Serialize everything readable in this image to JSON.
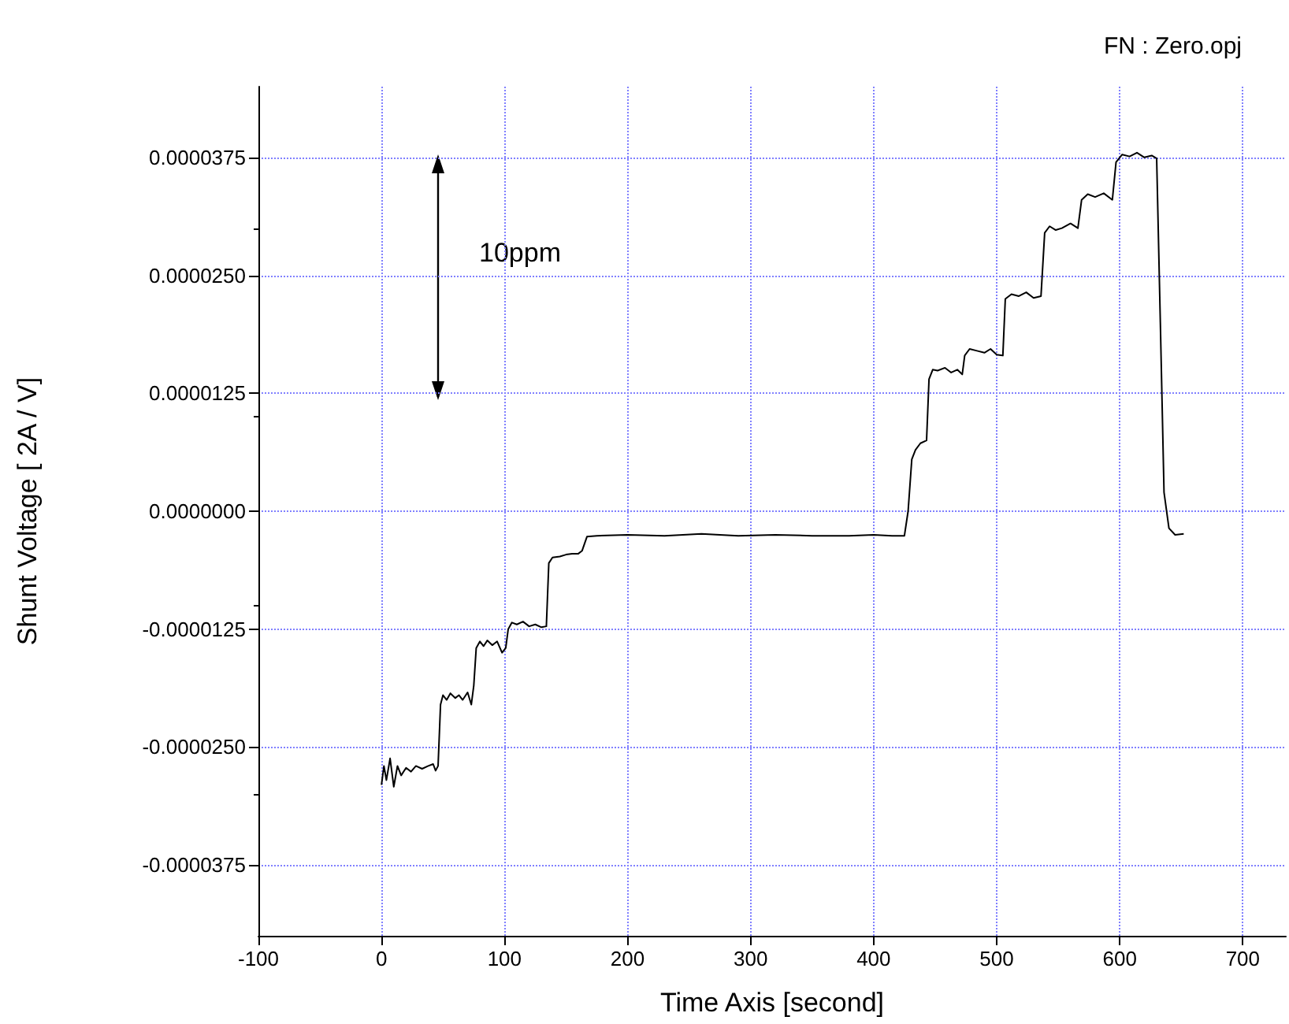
{
  "chart_data": {
    "type": "line",
    "xlabel": "Time Axis [second]",
    "ylabel": "Shunt Voltage [ 2A / V]",
    "annotations": [
      "FN : Zero.opj",
      "10ppm"
    ],
    "xlim": [
      -100,
      735
    ],
    "xticks": [
      -100,
      0,
      100,
      200,
      300,
      400,
      500,
      600,
      700
    ],
    "ylim": [
      -4.5e-05,
      4.5e-05
    ],
    "yticks": [
      {
        "value": -3.75e-05,
        "label": "-0.0000375"
      },
      {
        "value": -2.5e-05,
        "label": "-0.0000250"
      },
      {
        "value": -1.25e-05,
        "label": "-0.0000125"
      },
      {
        "value": 0,
        "label": "0.0000000"
      },
      {
        "value": 1.25e-05,
        "label": "0.0000125"
      },
      {
        "value": 2.5e-05,
        "label": "0.0000250"
      },
      {
        "value": 3.75e-05,
        "label": "0.0000375"
      }
    ],
    "grid": true,
    "marker": "none",
    "line_style": "solid",
    "series": [
      {
        "color": "#000000",
        "x": [
          0,
          2,
          4,
          7,
          10,
          13,
          16,
          20,
          24,
          28,
          33,
          38,
          42,
          44,
          46,
          48,
          50,
          53,
          56,
          60,
          63,
          66,
          70,
          73,
          75,
          77,
          80,
          83,
          86,
          90,
          94,
          98,
          101,
          103,
          106,
          110,
          115,
          120,
          125,
          130,
          134,
          136,
          139,
          145,
          150,
          155,
          160,
          163,
          167,
          175,
          200,
          230,
          260,
          290,
          320,
          350,
          380,
          400,
          415,
          425,
          428,
          431,
          434,
          438,
          443,
          445,
          448,
          452,
          458,
          463,
          468,
          472,
          474,
          478,
          484,
          490,
          495,
          500,
          505,
          507,
          512,
          518,
          524,
          530,
          536,
          539,
          543,
          548,
          553,
          560,
          566,
          569,
          574,
          580,
          587,
          594,
          597,
          602,
          608,
          614,
          620,
          626,
          630,
          633,
          636,
          640,
          645,
          652
        ],
        "values": [
          -2.9e-05,
          -2.7e-05,
          -2.85e-05,
          -2.62e-05,
          -2.92e-05,
          -2.7e-05,
          -2.8e-05,
          -2.72e-05,
          -2.76e-05,
          -2.7e-05,
          -2.73e-05,
          -2.7e-05,
          -2.68e-05,
          -2.75e-05,
          -2.7e-05,
          -2.05e-05,
          -1.95e-05,
          -2e-05,
          -1.93e-05,
          -1.98e-05,
          -1.95e-05,
          -2e-05,
          -1.92e-05,
          -2.05e-05,
          -1.85e-05,
          -1.45e-05,
          -1.38e-05,
          -1.43e-05,
          -1.37e-05,
          -1.42e-05,
          -1.38e-05,
          -1.5e-05,
          -1.45e-05,
          -1.25e-05,
          -1.18e-05,
          -1.2e-05,
          -1.17e-05,
          -1.22e-05,
          -1.2e-05,
          -1.23e-05,
          -1.22e-05,
          -5.5e-06,
          -4.9e-06,
          -4.8e-06,
          -4.6e-06,
          -4.5e-06,
          -4.5e-06,
          -4.2e-06,
          -2.7e-06,
          -2.6e-06,
          -2.5e-06,
          -2.6e-06,
          -2.4e-06,
          -2.6e-06,
          -2.5e-06,
          -2.6e-06,
          -2.6e-06,
          -2.5e-06,
          -2.6e-06,
          -2.6e-06,
          0,
          5.5e-06,
          6.5e-06,
          7.2e-06,
          7.5e-06,
          1.4e-05,
          1.5e-05,
          1.49e-05,
          1.52e-05,
          1.47e-05,
          1.5e-05,
          1.45e-05,
          1.65e-05,
          1.72e-05,
          1.7e-05,
          1.68e-05,
          1.72e-05,
          1.66e-05,
          1.65e-05,
          2.25e-05,
          2.3e-05,
          2.28e-05,
          2.32e-05,
          2.26e-05,
          2.28e-05,
          2.95e-05,
          3.02e-05,
          2.98e-05,
          3e-05,
          3.05e-05,
          3e-05,
          3.3e-05,
          3.36e-05,
          3.33e-05,
          3.37e-05,
          3.3e-05,
          3.7e-05,
          3.78e-05,
          3.76e-05,
          3.8e-05,
          3.75e-05,
          3.77e-05,
          3.74e-05,
          2e-05,
          2e-06,
          -1.8e-06,
          -2.5e-06,
          -2.4e-06
        ]
      }
    ]
  }
}
